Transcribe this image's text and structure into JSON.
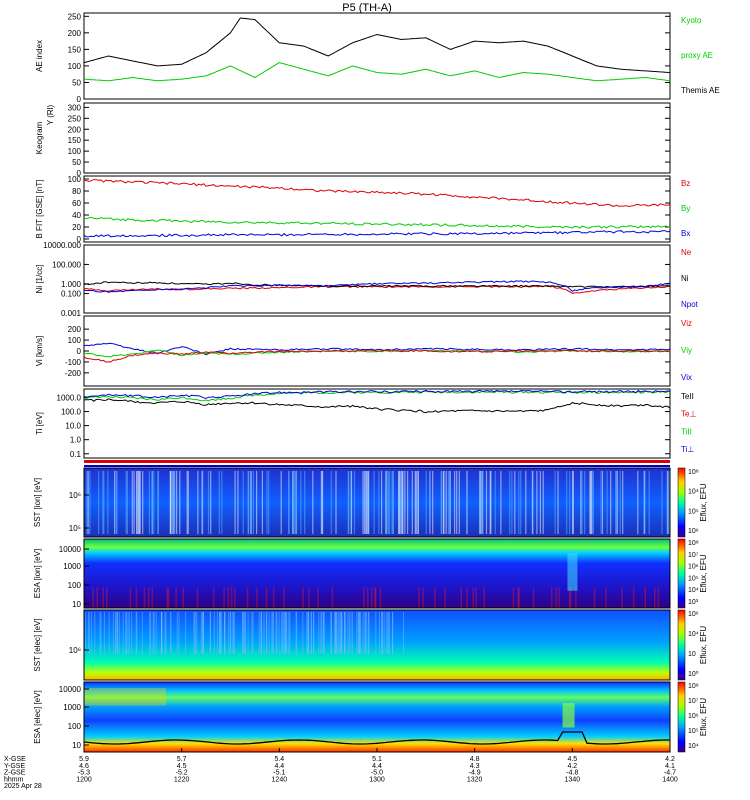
{
  "title": "P5 (TH-A)",
  "colors": {
    "black": "#000000",
    "green": "#00cc00",
    "red": "#dd0000",
    "blue": "#0000dd"
  },
  "chart_data": [
    {
      "id": "ae",
      "type": "line",
      "ylabel": "AE index",
      "ylim": [
        0,
        260
      ],
      "ticks": [
        {
          "v": 0,
          "t": "0"
        },
        {
          "v": 50,
          "t": "50"
        },
        {
          "v": 100,
          "t": "100"
        },
        {
          "v": 150,
          "t": "150"
        },
        {
          "v": 200,
          "t": "200"
        },
        {
          "v": 250,
          "t": "250"
        }
      ],
      "series": [
        {
          "name": "Themis AE",
          "color": "black",
          "x": [
            0,
            5,
            10,
            15,
            20,
            25,
            30,
            32,
            35,
            40,
            45,
            50,
            55,
            60,
            65,
            70,
            75,
            80,
            85,
            90,
            95,
            100,
            105,
            110,
            115,
            120
          ],
          "y": [
            110,
            130,
            115,
            100,
            105,
            140,
            200,
            245,
            240,
            170,
            160,
            130,
            170,
            195,
            180,
            185,
            150,
            175,
            170,
            175,
            160,
            130,
            100,
            90,
            85,
            80
          ]
        },
        {
          "name": "Kyoto proxy AE",
          "color": "green",
          "x": [
            0,
            5,
            10,
            15,
            20,
            25,
            30,
            35,
            40,
            45,
            50,
            55,
            60,
            65,
            70,
            75,
            80,
            85,
            90,
            95,
            100,
            105,
            110,
            115,
            120
          ],
          "y": [
            60,
            55,
            65,
            55,
            60,
            70,
            100,
            65,
            110,
            90,
            70,
            100,
            80,
            75,
            90,
            70,
            85,
            65,
            80,
            75,
            65,
            55,
            60,
            65,
            55
          ]
        }
      ],
      "legend": [
        {
          "text": "Kyoto",
          "color": "green"
        },
        {
          "text": "proxy AE",
          "color": "green"
        },
        {
          "text": "Themis AE",
          "color": "black"
        }
      ]
    },
    {
      "id": "keo",
      "type": "line",
      "ylabel": "Keogram",
      "ylabel2": "Y (Rl)",
      "ylim": [
        0,
        320
      ],
      "ticks": [
        {
          "v": 0,
          "t": "0"
        },
        {
          "v": 50,
          "t": "50"
        },
        {
          "v": 100,
          "t": "100"
        },
        {
          "v": 150,
          "t": "150"
        },
        {
          "v": 200,
          "t": "200"
        },
        {
          "v": 250,
          "t": "250"
        },
        {
          "v": 300,
          "t": "300"
        }
      ],
      "series": [],
      "legend": []
    },
    {
      "id": "bfield",
      "type": "line",
      "ylabel": "B FIT [GSE] [nT]",
      "ylim": [
        -5,
        105
      ],
      "ticks": [
        {
          "v": 0,
          "t": "0"
        },
        {
          "v": 20,
          "t": "20"
        },
        {
          "v": 40,
          "t": "40"
        },
        {
          "v": 60,
          "t": "60"
        },
        {
          "v": 80,
          "t": "80"
        },
        {
          "v": 100,
          "t": "100"
        }
      ],
      "series": [
        {
          "name": "Bz",
          "color": "red",
          "x": [
            0,
            10,
            20,
            30,
            40,
            50,
            60,
            70,
            80,
            90,
            100,
            110,
            120
          ],
          "y": [
            98,
            95,
            92,
            88,
            85,
            80,
            78,
            75,
            70,
            65,
            60,
            55,
            57
          ]
        },
        {
          "name": "By",
          "color": "green",
          "x": [
            0,
            10,
            20,
            30,
            40,
            50,
            60,
            70,
            80,
            90,
            100,
            110,
            120
          ],
          "y": [
            35,
            32,
            30,
            28,
            27,
            26,
            25,
            24,
            22,
            21,
            20,
            20,
            21
          ]
        },
        {
          "name": "Bx",
          "color": "blue",
          "x": [
            0,
            10,
            20,
            30,
            40,
            50,
            60,
            70,
            80,
            90,
            100,
            110,
            120
          ],
          "y": [
            5,
            6,
            6,
            7,
            7,
            8,
            8,
            9,
            9,
            10,
            11,
            12,
            12
          ]
        }
      ],
      "legend": [
        {
          "text": "Bz",
          "color": "red"
        },
        {
          "text": "By",
          "color": "green"
        },
        {
          "text": "Bx",
          "color": "blue"
        }
      ]
    },
    {
      "id": "density",
      "type": "line",
      "scale": "log",
      "ylabel": "Ni [1/cc]",
      "ylim": [
        0.001,
        10000
      ],
      "ticks": [
        {
          "v": 0.001,
          "t": "0.001"
        },
        {
          "v": 0.1,
          "t": "0.100"
        },
        {
          "v": 1,
          "t": "1.000"
        },
        {
          "v": 100,
          "t": "100.000"
        },
        {
          "v": 10000,
          "t": "10000.000"
        }
      ],
      "series": [
        {
          "name": "Ne",
          "color": "red",
          "x": [
            0,
            5,
            10,
            15,
            20,
            25,
            30,
            40,
            50,
            60,
            70,
            80,
            90,
            95,
            100,
            105,
            110,
            115,
            120
          ],
          "y": [
            0.3,
            0.2,
            0.25,
            0.3,
            0.28,
            0.3,
            0.35,
            0.4,
            0.5,
            0.5,
            0.5,
            0.5,
            0.5,
            0.6,
            0.1,
            0.2,
            0.3,
            0.4,
            0.5
          ]
        },
        {
          "name": "Ni",
          "color": "black",
          "x": [
            0,
            5,
            10,
            15,
            20,
            25,
            30,
            35,
            40,
            50,
            60,
            70,
            80,
            90,
            95,
            100,
            110,
            120
          ],
          "y": [
            0.8,
            1.5,
            1.2,
            1.3,
            1.0,
            0.9,
            1.2,
            0.8,
            0.7,
            0.6,
            0.6,
            0.6,
            0.6,
            0.6,
            0.6,
            0.5,
            0.5,
            0.6
          ]
        },
        {
          "name": "Npot",
          "color": "blue",
          "x": [
            0,
            5,
            10,
            15,
            20,
            25,
            30,
            40,
            50,
            60,
            70,
            80,
            90,
            95,
            100,
            105,
            110,
            115,
            120
          ],
          "y": [
            0.2,
            0.15,
            0.2,
            0.25,
            0.3,
            0.4,
            0.6,
            0.7,
            0.6,
            1.0,
            1.2,
            1.5,
            1.8,
            1.5,
            0.2,
            0.4,
            0.5,
            0.6,
            1.0
          ]
        }
      ],
      "legend": [
        {
          "text": "Ne",
          "color": "red"
        },
        {
          "text": "Ni",
          "color": "black"
        },
        {
          "text": "Npot",
          "color": "blue"
        }
      ]
    },
    {
      "id": "velocity",
      "type": "line",
      "ylabel": "Vi [km/s]",
      "ylim": [
        -320,
        320
      ],
      "ticks": [
        {
          "v": -200,
          "t": "-200"
        },
        {
          "v": -100,
          "t": "-100"
        },
        {
          "v": 0,
          "t": "0"
        },
        {
          "v": 100,
          "t": "100"
        },
        {
          "v": 200,
          "t": "200"
        }
      ],
      "series": [
        {
          "name": "Vix",
          "color": "blue",
          "x": [
            0,
            5,
            10,
            15,
            20,
            25,
            30,
            40,
            50,
            60,
            70,
            80,
            90,
            100,
            110,
            120
          ],
          "y": [
            50,
            70,
            20,
            -20,
            40,
            -30,
            20,
            10,
            20,
            10,
            20,
            15,
            10,
            20,
            10,
            15
          ]
        },
        {
          "name": "Viy",
          "color": "green",
          "x": [
            0,
            5,
            10,
            15,
            20,
            25,
            30,
            40,
            50,
            60,
            70,
            80,
            90,
            100,
            110,
            120
          ],
          "y": [
            -20,
            -50,
            -30,
            10,
            -40,
            -20,
            -30,
            -10,
            0,
            -5,
            5,
            0,
            -10,
            0,
            -5,
            0
          ]
        },
        {
          "name": "Viz",
          "color": "red",
          "x": [
            0,
            5,
            10,
            15,
            20,
            25,
            30,
            40,
            50,
            60,
            70,
            80,
            90,
            100,
            110,
            120
          ],
          "y": [
            -60,
            -100,
            -40,
            -20,
            -30,
            -10,
            -20,
            -5,
            0,
            5,
            0,
            -5,
            0,
            5,
            0,
            -5
          ]
        }
      ],
      "legend": [
        {
          "text": "Viz",
          "color": "red"
        },
        {
          "text": "Viy",
          "color": "green"
        },
        {
          "text": "Vix",
          "color": "blue"
        }
      ]
    },
    {
      "id": "temp",
      "type": "line",
      "scale": "log",
      "ylabel": "Ti [eV]",
      "ylim": [
        0.05,
        4000
      ],
      "ticks": [
        {
          "v": 0.1,
          "t": "0.1"
        },
        {
          "v": 1,
          "t": "1.0"
        },
        {
          "v": 10,
          "t": "10.0"
        },
        {
          "v": 100,
          "t": "100.0"
        },
        {
          "v": 1000,
          "t": "1000.0"
        }
      ],
      "series": [
        {
          "name": "TiII",
          "color": "green",
          "x": [
            0,
            5,
            10,
            15,
            20,
            25,
            30,
            35,
            40,
            50,
            60,
            70,
            80,
            90,
            100,
            110,
            120
          ],
          "y": [
            900,
            1100,
            900,
            700,
            1000,
            600,
            900,
            1500,
            2000,
            2200,
            2300,
            2400,
            2400,
            2400,
            2300,
            2300,
            2400
          ]
        },
        {
          "name": "TiL",
          "color": "blue",
          "x": [
            0,
            5,
            10,
            15,
            20,
            25,
            30,
            35,
            40,
            50,
            60,
            70,
            80,
            90,
            100,
            110,
            120
          ],
          "y": [
            1200,
            1500,
            1300,
            1000,
            1400,
            1000,
            1200,
            1800,
            2300,
            2500,
            2600,
            2700,
            2700,
            2700,
            2600,
            2600,
            2700
          ]
        },
        {
          "name": "TeII",
          "color": "black",
          "x": [
            0,
            5,
            10,
            15,
            20,
            25,
            30,
            35,
            40,
            45,
            50,
            55,
            60,
            65,
            70,
            80,
            90,
            95,
            100,
            105,
            110,
            115,
            120
          ],
          "y": [
            600,
            700,
            500,
            400,
            500,
            300,
            400,
            400,
            300,
            250,
            200,
            250,
            150,
            120,
            100,
            110,
            100,
            120,
            400,
            300,
            250,
            300,
            200
          ]
        }
      ],
      "legend": [
        {
          "text": "TeII",
          "color": "black"
        },
        {
          "text": "Te⊥",
          "color": "red"
        },
        {
          "text": "TiII",
          "color": "green"
        },
        {
          "text": "Ti⊥",
          "color": "blue"
        }
      ]
    }
  ],
  "spectrograms": [
    {
      "id": "sst_i",
      "ylabel": "SST [ion] [eV]",
      "ticks": [
        "10⁶",
        "10⁵"
      ],
      "cbar_label": "Eflux, EFU",
      "cbar_ticks": [
        "10⁸",
        "10⁴",
        "10⁵",
        "10⁶"
      ]
    },
    {
      "id": "esa_i",
      "ylabel": "ESA [ion] [eV]",
      "ticks": [
        "10000",
        "1000",
        "100",
        "10"
      ],
      "cbar_label": "Eflux, EFU",
      "cbar_ticks": [
        "10⁸",
        "10⁷",
        "10⁶",
        "10⁵",
        "10⁴",
        "10³"
      ]
    },
    {
      "id": "sst_e",
      "ylabel": "SST [elec] [eV]",
      "ticks": [
        "10⁶"
      ],
      "cbar_label": "Eflux, EFU",
      "cbar_ticks": [
        "10⁶",
        "10⁴",
        "10⁲",
        "10⁰"
      ]
    },
    {
      "id": "esa_e",
      "ylabel": "ESA [elec] [eV]",
      "ticks": [
        "10000",
        "1000",
        "100",
        "10"
      ],
      "cbar_label": "Eflux, EFU",
      "cbar_ticks": [
        "10⁸",
        "10⁷",
        "10⁶",
        "10⁵",
        "10⁴"
      ]
    }
  ],
  "xaxis": {
    "row_labels": [
      "X-GSE",
      "Y-GSE",
      "Z-GSE",
      "hhmm",
      "2025 Apr 28"
    ],
    "ticks": [
      {
        "t": 0,
        "x": "5.9",
        "y": "4.6",
        "z": "-5.3",
        "hhmm": "1200"
      },
      {
        "t": 20,
        "x": "5.7",
        "y": "4.5",
        "z": "-5.2",
        "hhmm": "1220"
      },
      {
        "t": 40,
        "x": "5.4",
        "y": "4.4",
        "z": "-5.1",
        "hhmm": "1240"
      },
      {
        "t": 60,
        "x": "5.1",
        "y": "4.4",
        "z": "-5.0",
        "hhmm": "1300"
      },
      {
        "t": 80,
        "x": "4.8",
        "y": "4.3",
        "z": "-4.9",
        "hhmm": "1320"
      },
      {
        "t": 100,
        "x": "4.5",
        "y": "4.2",
        "z": "-4.8",
        "hhmm": "1340"
      },
      {
        "t": 120,
        "x": "4.2",
        "y": "4.1",
        "z": "-4.7",
        "hhmm": "1400"
      }
    ]
  }
}
